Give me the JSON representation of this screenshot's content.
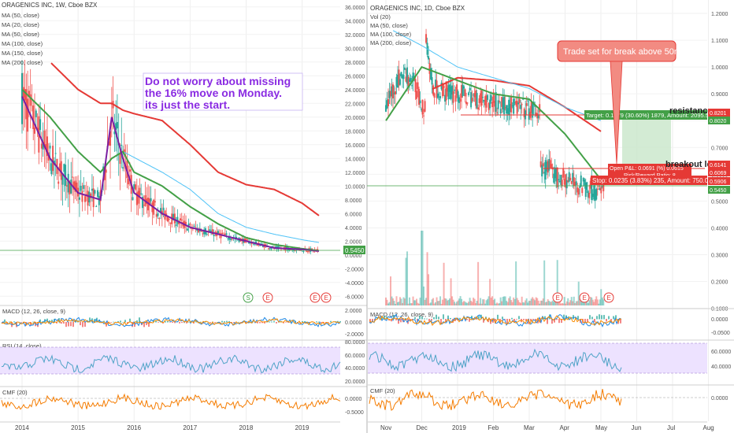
{
  "left": {
    "title": "ORAGENICS INC, 1W, Cboe BZX",
    "legend": [
      "MA (50, close)",
      "MA (20, close)",
      "MA (50, close)",
      "MA (100, close)",
      "MA (150, close)",
      "MA (200, close)"
    ],
    "price_ticks": [
      "36.0000",
      "34.0000",
      "32.0000",
      "30.0000",
      "28.0000",
      "26.0000",
      "24.0000",
      "22.0000",
      "20.0000",
      "18.0000",
      "16.0000",
      "14.0000",
      "12.0000",
      "10.0000",
      "8.0000",
      "6.0000",
      "4.0000",
      "2.0000",
      "0.0000",
      "-2.0000",
      "-4.0000",
      "-6.0000"
    ],
    "price_tag": "0.5450",
    "annotation": [
      "Do not worry about missing",
      "the 16% move on Monday.",
      "its just the start."
    ],
    "markers": [
      "S",
      "E",
      "E",
      "E"
    ],
    "macd_label": "MACD (12, 26, close, 9)",
    "macd_ticks": [
      "2.0000",
      "0.0000",
      "-2.0000"
    ],
    "rsi_label": "RSI (14, close)",
    "rsi_ticks": [
      "80.0000",
      "60.0000",
      "40.0000",
      "20.0000"
    ],
    "cmf_label": "CMF (20)",
    "cmf_ticks": [
      "0.0000",
      "-0.5000"
    ],
    "x_labels": [
      "2014",
      "2015",
      "2016",
      "2017",
      "2018",
      "2019"
    ]
  },
  "right": {
    "title": "ORAGENICS INC, 1D, Cboe BZX",
    "legend": [
      "Vol (20)",
      "MA (50, close)",
      "MA (100, close)",
      "MA (200, close)"
    ],
    "price_ticks": [
      "1.2000",
      "1.1000",
      "1.0000",
      "0.9000",
      "0.8000",
      "0.7000",
      "0.6000",
      "0.5000",
      "0.4000",
      "0.3000",
      "0.2000",
      "0.1000"
    ],
    "price_tags": [
      {
        "text": "0.8201",
        "color": "#e53935"
      },
      {
        "text": "0.8020",
        "color": "#43a047"
      },
      {
        "text": "0.6141",
        "color": "#e53935"
      },
      {
        "text": "0.6069",
        "color": "#e53935"
      },
      {
        "text": "0.5906",
        "color": "#e53935"
      },
      {
        "text": "0.5450",
        "color": "#43a047"
      }
    ],
    "callout": "Trade set for break above 50ma",
    "resistance_label": "resistance",
    "breakout_label": "breakout level",
    "target_label": "Target: 0.1879 (30.60%) 1879, Amount: 2095.5",
    "open_label": "Open P&L: 0.0691 (%) 0.0615",
    "rr_label": "Risk/Reward Ratio: 8",
    "stop_label": "Stop: 0.0235 (3.83%) 235, Amount: 750.01",
    "markers": [
      "E",
      "E",
      "E"
    ],
    "macd_label": "MACD (12, 26, close, 9)",
    "macd_ticks": [
      "0.0000",
      "-0.0500"
    ],
    "rsi_label": "RSI (14, close)",
    "rsi_ticks": [
      "60.0000",
      "40.0000"
    ],
    "cmf_label": "CMF (20)",
    "cmf_ticks": [
      "0.0000"
    ],
    "x_labels": [
      "Nov",
      "Dec",
      "2019",
      "Feb",
      "Mar",
      "Apr",
      "May",
      "Jun",
      "Jul",
      "Aug"
    ]
  },
  "colors": {
    "red_ma": "#e53935",
    "green_ma": "#43a047",
    "purple_ma": "#7b1fa2",
    "teal_ma": "#4fc3f7",
    "up": "#26a69a",
    "down": "#ef5350",
    "rsi_fill": "#ede2ff",
    "cmf": "#f57c00",
    "annotation": "#8a2be2"
  },
  "chart_data": [
    {
      "type": "line",
      "title": "ORAGENICS INC, 1W, Cboe BZX",
      "x": [
        2014,
        2014.5,
        2015,
        2015.4,
        2015.6,
        2015.8,
        2016,
        2016.5,
        2017,
        2017.5,
        2018,
        2018.5,
        2019,
        2019.3
      ],
      "series": [
        {
          "name": "MA (200, close)",
          "values": [
            null,
            28,
            24,
            22,
            22,
            21,
            20.5,
            19.5,
            16,
            12,
            10.2,
            9.5,
            7.5,
            5.7
          ]
        },
        {
          "name": "MA (50, close)",
          "values": [
            24,
            20,
            15,
            12,
            14,
            15,
            12,
            10,
            7,
            4.5,
            2.5,
            1.5,
            0.9,
            0.6
          ]
        },
        {
          "name": "MA (20, close)",
          "values": [
            23,
            14,
            9,
            8,
            20,
            14,
            9,
            6,
            4,
            3,
            2,
            1,
            0.8,
            0.55
          ]
        }
      ],
      "ylim": [
        -7,
        37
      ]
    },
    {
      "type": "line",
      "title": "ORAGENICS INC, 1D, Cboe BZX",
      "x": [
        "Nov",
        "Dec",
        "2019",
        "Feb",
        "Mar",
        "Apr",
        "May"
      ],
      "series": [
        {
          "name": "MA (50, close)",
          "values": [
            0.8,
            1.0,
            0.95,
            0.9,
            0.88,
            0.75,
            0.58
          ]
        },
        {
          "name": "MA (100, close)",
          "values": [
            1.15,
            1.08,
            1.0,
            0.96,
            0.92,
            0.85,
            0.8
          ]
        },
        {
          "name": "MA (200, close)",
          "values": [
            null,
            0.9,
            0.96,
            0.95,
            0.93,
            0.85,
            0.76
          ]
        }
      ],
      "ylim": [
        0.09,
        1.25
      ]
    }
  ]
}
